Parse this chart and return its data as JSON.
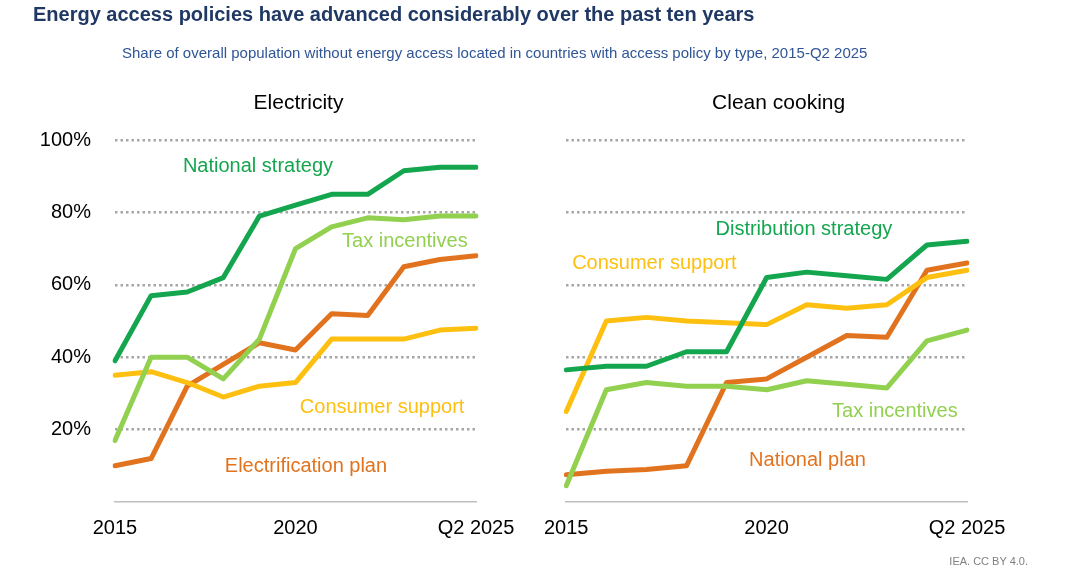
{
  "chart_data": [
    {
      "type": "other",
      "title": "Energy access policies have advanced considerably over the past ten years",
      "subtitle": "Share of overall population without energy access located in countries with access policy by type, 2015-Q2 2025"
    },
    {
      "type": "line",
      "title": "Electricity",
      "categories": [
        "2015",
        null,
        null,
        null,
        null,
        "2020",
        null,
        null,
        null,
        null,
        "Q2 2025"
      ],
      "series": [
        {
          "name": "National strategy",
          "color": "#14a64f",
          "values": [
            39,
            57,
            58,
            62,
            79,
            82,
            85,
            85,
            91.5,
            92.5,
            92.5
          ]
        },
        {
          "name": "Tax incentives",
          "color": "#92d050",
          "values": [
            17,
            40,
            40,
            34,
            45,
            70,
            76,
            78.5,
            78,
            79,
            79
          ]
        },
        {
          "name": "Consumer support",
          "color": "#fdc010",
          "values": [
            35,
            36,
            33,
            29,
            32,
            33,
            45,
            45,
            45,
            47.5,
            48
          ]
        },
        {
          "name": "Electrification plan",
          "color": "#e2731e",
          "values": [
            10,
            12,
            32,
            38,
            44,
            42,
            52,
            51.5,
            65,
            67,
            68
          ]
        }
      ],
      "ylim": [
        0,
        100
      ],
      "yticks": [
        {
          "value": 20,
          "label": "20%"
        },
        {
          "value": 40,
          "label": "40%"
        },
        {
          "value": 60,
          "label": "60%"
        },
        {
          "value": 80,
          "label": "80%"
        },
        {
          "value": 100,
          "label": "100%"
        }
      ],
      "grid": "y",
      "marker": "none",
      "line_style": "solid"
    },
    {
      "type": "line",
      "title": "Clean cooking",
      "categories": [
        "2015",
        null,
        null,
        null,
        null,
        "2020",
        null,
        null,
        null,
        null,
        "Q2 2025"
      ],
      "series": [
        {
          "name": "Distribution strategy",
          "color": "#14a64f",
          "values": [
            36.5,
            37.5,
            37.5,
            41.5,
            41.5,
            62,
            63.5,
            62.5,
            61.5,
            71,
            72
          ]
        },
        {
          "name": "Consumer support",
          "color": "#fdc010",
          "values": [
            25,
            50,
            51,
            50,
            49.5,
            49,
            54.5,
            53.5,
            54.5,
            62,
            64
          ]
        },
        {
          "name": "Tax incentives",
          "color": "#92d050",
          "values": [
            4.5,
            31,
            33,
            32,
            32,
            31,
            33.5,
            32.5,
            31.5,
            44.5,
            47.5
          ]
        },
        {
          "name": "National plan",
          "color": "#e2731e",
          "values": [
            7.5,
            8.5,
            9,
            10,
            33,
            34,
            40,
            46,
            45.5,
            64,
            66
          ]
        }
      ],
      "ylim": [
        0,
        100
      ],
      "yticks": [
        20,
        40,
        60,
        80,
        100
      ],
      "tick_labels": "x",
      "grid": "y",
      "marker": "none",
      "line_style": "solid",
      "annotations": [
        "IEA. CC BY 4.0."
      ]
    }
  ]
}
